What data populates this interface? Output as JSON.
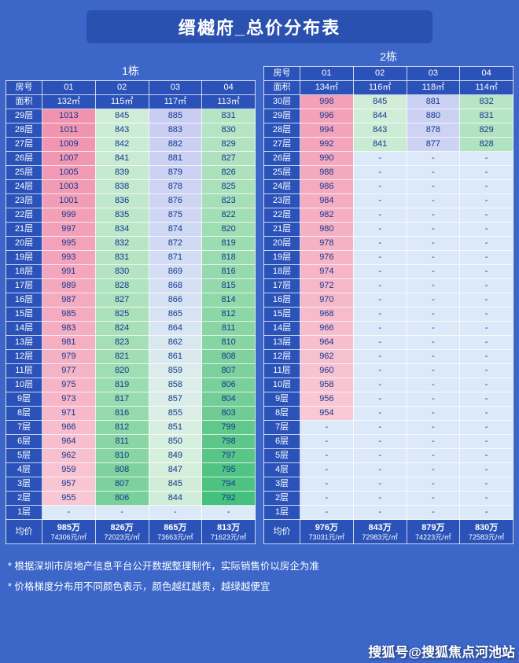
{
  "title": "缙樾府_总价分布表",
  "chart_data": [
    {
      "type": "table",
      "title": "1栋",
      "corner_labels": {
        "room": "房号",
        "area": "面积",
        "avg": "均价"
      },
      "rooms": [
        "01",
        "02",
        "03",
        "04"
      ],
      "areas": [
        "132㎡",
        "115㎡",
        "117㎡",
        "113㎡"
      ],
      "floors": [
        "29层",
        "28层",
        "27层",
        "26层",
        "25层",
        "24层",
        "23层",
        "22层",
        "21层",
        "20层",
        "19层",
        "18层",
        "17层",
        "16层",
        "15层",
        "14层",
        "13层",
        "12层",
        "11层",
        "10层",
        "9层",
        "8层",
        "7层",
        "6层",
        "5层",
        "4层",
        "3层",
        "2层",
        "1层"
      ],
      "values": [
        [
          1013,
          845,
          885,
          831
        ],
        [
          1011,
          843,
          883,
          830
        ],
        [
          1009,
          842,
          882,
          829
        ],
        [
          1007,
          841,
          881,
          827
        ],
        [
          1005,
          839,
          879,
          826
        ],
        [
          1003,
          838,
          878,
          825
        ],
        [
          1001,
          836,
          876,
          823
        ],
        [
          999,
          835,
          875,
          822
        ],
        [
          997,
          834,
          874,
          820
        ],
        [
          995,
          832,
          872,
          819
        ],
        [
          993,
          831,
          871,
          818
        ],
        [
          991,
          830,
          869,
          816
        ],
        [
          989,
          828,
          868,
          815
        ],
        [
          987,
          827,
          866,
          814
        ],
        [
          985,
          825,
          865,
          812
        ],
        [
          983,
          824,
          864,
          811
        ],
        [
          981,
          823,
          862,
          810
        ],
        [
          979,
          821,
          861,
          808
        ],
        [
          977,
          820,
          859,
          807
        ],
        [
          975,
          819,
          858,
          806
        ],
        [
          973,
          817,
          857,
          804
        ],
        [
          971,
          816,
          855,
          803
        ],
        [
          966,
          812,
          851,
          799
        ],
        [
          964,
          811,
          850,
          798
        ],
        [
          962,
          810,
          849,
          797
        ],
        [
          959,
          808,
          847,
          795
        ],
        [
          957,
          807,
          845,
          794
        ],
        [
          955,
          806,
          844,
          792
        ],
        [
          "-",
          "-",
          "-",
          "-"
        ]
      ],
      "avg": [
        {
          "price": "985万",
          "unit": "74306元/㎡"
        },
        {
          "price": "826万",
          "unit": "72023元/㎡"
        },
        {
          "price": "865万",
          "unit": "73663元/㎡"
        },
        {
          "price": "813万",
          "unit": "71623元/㎡"
        }
      ]
    },
    {
      "type": "table",
      "title": "2栋",
      "corner_labels": {
        "room": "房号",
        "area": "面积",
        "avg": "均价"
      },
      "rooms": [
        "01",
        "02",
        "03",
        "04"
      ],
      "areas": [
        "134㎡",
        "116㎡",
        "118㎡",
        "114㎡"
      ],
      "floors": [
        "30层",
        "29层",
        "28层",
        "27层",
        "26层",
        "25层",
        "24层",
        "23层",
        "22层",
        "21层",
        "20层",
        "19层",
        "18层",
        "17层",
        "16层",
        "15层",
        "14层",
        "13层",
        "12层",
        "11层",
        "10层",
        "9层",
        "8层",
        "7层",
        "6层",
        "5层",
        "4层",
        "3层",
        "2层",
        "1层"
      ],
      "values": [
        [
          998,
          845,
          881,
          832
        ],
        [
          996,
          844,
          880,
          831
        ],
        [
          994,
          843,
          878,
          829
        ],
        [
          992,
          841,
          877,
          828
        ],
        [
          990,
          "-",
          "-",
          "-"
        ],
        [
          988,
          "-",
          "-",
          "-"
        ],
        [
          986,
          "-",
          "-",
          "-"
        ],
        [
          984,
          "-",
          "-",
          "-"
        ],
        [
          982,
          "-",
          "-",
          "-"
        ],
        [
          980,
          "-",
          "-",
          "-"
        ],
        [
          978,
          "-",
          "-",
          "-"
        ],
        [
          976,
          "-",
          "-",
          "-"
        ],
        [
          974,
          "-",
          "-",
          "-"
        ],
        [
          972,
          "-",
          "-",
          "-"
        ],
        [
          970,
          "-",
          "-",
          "-"
        ],
        [
          968,
          "-",
          "-",
          "-"
        ],
        [
          966,
          "-",
          "-",
          "-"
        ],
        [
          964,
          "-",
          "-",
          "-"
        ],
        [
          962,
          "-",
          "-",
          "-"
        ],
        [
          960,
          "-",
          "-",
          "-"
        ],
        [
          958,
          "-",
          "-",
          "-"
        ],
        [
          956,
          "-",
          "-",
          "-"
        ],
        [
          954,
          "-",
          "-",
          "-"
        ],
        [
          "-",
          "-",
          "-",
          "-"
        ],
        [
          "-",
          "-",
          "-",
          "-"
        ],
        [
          "-",
          "-",
          "-",
          "-"
        ],
        [
          "-",
          "-",
          "-",
          "-"
        ],
        [
          "-",
          "-",
          "-",
          "-"
        ],
        [
          "-",
          "-",
          "-",
          "-"
        ],
        [
          "-",
          "-",
          "-",
          "-"
        ]
      ],
      "avg": [
        {
          "price": "976万",
          "unit": "73031元/㎡"
        },
        {
          "price": "843万",
          "unit": "72983元/㎡"
        },
        {
          "price": "879万",
          "unit": "74223元/㎡"
        },
        {
          "price": "830万",
          "unit": "72583元/㎡"
        }
      ]
    }
  ],
  "notes": [
    "* 根据深圳市房地产信息平台公开数据整理制作，实际销售价以房企为准",
    "* 价格梯度分布用不同颜色表示，颜色越红越贵，越绿越便宜"
  ],
  "watermark": "搜狐号@搜狐焦点河池站",
  "colors": {
    "page_bg": "#3c66c8",
    "banner_bg": "#2b51b0",
    "header_bg": "#2a52b8",
    "cell_text": "#14388f",
    "empty_cell_bg": "#dbe9f9",
    "scale": [
      {
        "v": 792,
        "c": "#46c17d"
      },
      {
        "v": 802,
        "c": "#6ccb93"
      },
      {
        "v": 812,
        "c": "#8cd7a6"
      },
      {
        "v": 824,
        "c": "#a8e0b9"
      },
      {
        "v": 836,
        "c": "#c0e8cc"
      },
      {
        "v": 848,
        "c": "#d6efdc"
      },
      {
        "v": 858,
        "c": "#dcedea"
      },
      {
        "v": 866,
        "c": "#d6e2f4"
      },
      {
        "v": 876,
        "c": "#cdd5f3"
      },
      {
        "v": 886,
        "c": "#c8ccf2"
      },
      {
        "v": 948,
        "c": "#f9cdd9"
      },
      {
        "v": 1013,
        "c": "#f192ae"
      }
    ]
  }
}
